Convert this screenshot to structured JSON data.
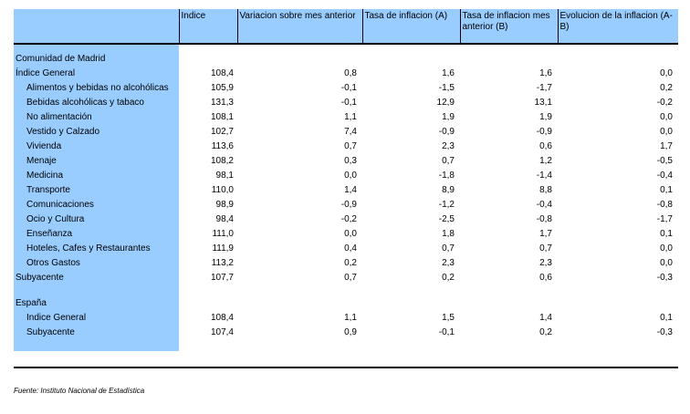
{
  "header": {
    "col0": "",
    "col1": "Indice",
    "col2": "Variacion sobre mes anterior",
    "col3": "Tasa de inflacion (A)",
    "col4": "Tasa de inflacion mes anterior (B)",
    "col5": "Evolucion de la inflacion (A-B)"
  },
  "section_madrid": "Comunidad de Madrid",
  "madrid_rows": [
    {
      "label": "Índice General",
      "indent": 0,
      "indice": "108,4",
      "var": "0,8",
      "a": "1,6",
      "b": "1,6",
      "ab": "0,0"
    },
    {
      "label": "Alimentos y bebidas no alcohólicas",
      "indent": 1,
      "indice": "105,9",
      "var": "-0,1",
      "a": "-1,5",
      "b": "-1,7",
      "ab": "0,2"
    },
    {
      "label": "Bebidas alcohólicas y tabaco",
      "indent": 1,
      "indice": "131,3",
      "var": "-0,1",
      "a": "12,9",
      "b": "13,1",
      "ab": "-0,2"
    },
    {
      "label": "No alimentación",
      "indent": 1,
      "indice": "108,1",
      "var": "1,1",
      "a": "1,9",
      "b": "1,9",
      "ab": "0,0"
    },
    {
      "label": "Vestido y Calzado",
      "indent": 1,
      "indice": "102,7",
      "var": "7,4",
      "a": "-0,9",
      "b": "-0,9",
      "ab": "0,0"
    },
    {
      "label": "Vivienda",
      "indent": 1,
      "indice": "113,6",
      "var": "0,7",
      "a": "2,3",
      "b": "0,6",
      "ab": "1,7"
    },
    {
      "label": "Menaje",
      "indent": 1,
      "indice": "108,2",
      "var": "0,3",
      "a": "0,7",
      "b": "1,2",
      "ab": "-0,5"
    },
    {
      "label": "Medicina",
      "indent": 1,
      "indice": "98,1",
      "var": "0,0",
      "a": "-1,8",
      "b": "-1,4",
      "ab": "-0,4"
    },
    {
      "label": "Transporte",
      "indent": 1,
      "indice": "110,0",
      "var": "1,4",
      "a": "8,9",
      "b": "8,8",
      "ab": "0,1"
    },
    {
      "label": "Comunicaciones",
      "indent": 1,
      "indice": "98,9",
      "var": "-0,9",
      "a": "-1,2",
      "b": "-0,4",
      "ab": "-0,8"
    },
    {
      "label": "Ocio y Cultura",
      "indent": 1,
      "indice": "98,4",
      "var": "-0,2",
      "a": "-2,5",
      "b": "-0,8",
      "ab": "-1,7"
    },
    {
      "label": "Enseñanza",
      "indent": 1,
      "indice": "111,0",
      "var": "0,0",
      "a": "1,8",
      "b": "1,7",
      "ab": "0,1"
    },
    {
      "label": "Hoteles, Cafes y Restaurantes",
      "indent": 1,
      "indice": "111,9",
      "var": "0,4",
      "a": "0,7",
      "b": "0,7",
      "ab": "0,0"
    },
    {
      "label": "Otros Gastos",
      "indent": 1,
      "indice": "113,2",
      "var": "0,2",
      "a": "2,3",
      "b": "2,3",
      "ab": "0,0"
    },
    {
      "label": "Subyacente",
      "indent": 0,
      "indice": "107,7",
      "var": "0,7",
      "a": "0,2",
      "b": "0,6",
      "ab": "-0,3"
    }
  ],
  "section_espana": "España",
  "espana_rows": [
    {
      "label": "Indice General",
      "indent": 1,
      "indice": "108,4",
      "var": "1,1",
      "a": "1,5",
      "b": "1,4",
      "ab": "0,1"
    },
    {
      "label": "Subyacente",
      "indent": 1,
      "indice": "107,4",
      "var": "0,9",
      "a": "-0,1",
      "b": "0,2",
      "ab": "-0,3"
    }
  ],
  "source": "Fuente: Instituto Nacional de Estadística"
}
